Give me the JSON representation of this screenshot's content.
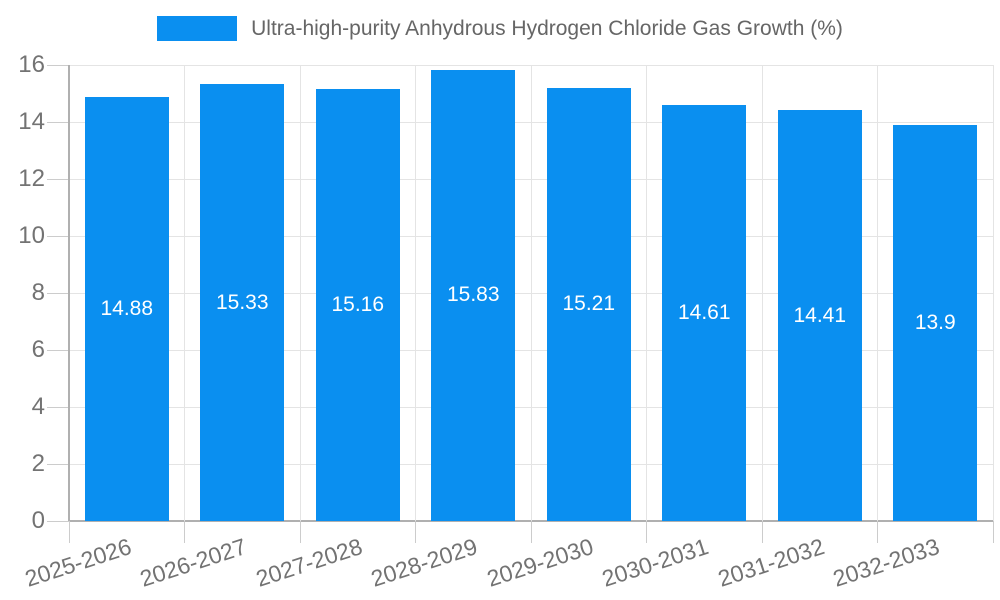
{
  "chart_data": {
    "type": "bar",
    "title": "Ultra-high-purity Anhydrous Hydrogen Chloride Gas Growth (%)",
    "legend_position": "top",
    "categories": [
      "2025-2026",
      "2026-2027",
      "2027-2028",
      "2028-2029",
      "2029-2030",
      "2030-2031",
      "2031-2032",
      "2032-2033"
    ],
    "series": [
      {
        "name": "Ultra-high-purity Anhydrous Hydrogen Chloride Gas Growth (%)",
        "values": [
          14.88,
          15.33,
          15.16,
          15.83,
          15.21,
          14.61,
          14.41,
          13.9
        ]
      }
    ],
    "value_labels": [
      "14.88",
      "15.33",
      "15.16",
      "15.83",
      "15.21",
      "14.61",
      "14.41",
      "13.9"
    ],
    "value_labels_position": "center-inside-bar",
    "xlabel": "",
    "ylabel": "",
    "ylim": [
      0,
      16
    ],
    "y_ticks": [
      0,
      2,
      4,
      6,
      8,
      10,
      12,
      14,
      16
    ],
    "grid": "both",
    "colors": {
      "bar": "#0a8ff0",
      "value_text": "#ffffff",
      "title_text": "#666666",
      "axis_text": "#737373",
      "grid_line": "#e4e4e4",
      "axis_line": "#b0b0b0",
      "tick_line": "#cccccc",
      "background": "#ffffff"
    }
  }
}
